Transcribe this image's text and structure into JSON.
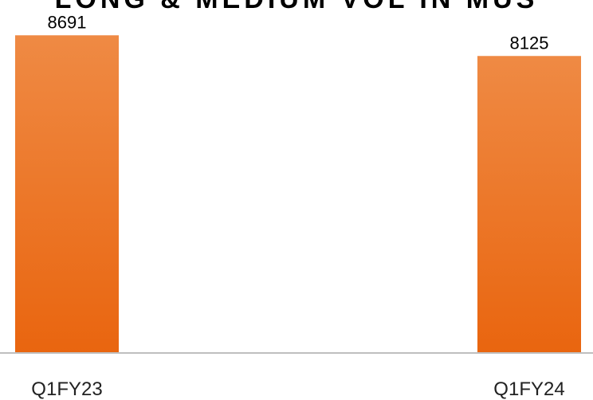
{
  "chart_data": {
    "type": "bar",
    "title": "LONG & MEDIUM VOL IN MUS",
    "categories": [
      "Q1FY23",
      "Q1FY24"
    ],
    "values": [
      8691,
      8125
    ],
    "data_labels": [
      "8691",
      "8125"
    ],
    "ylim": [
      0,
      8850
    ],
    "grid": false,
    "legend": "none",
    "colors": {
      "bar_top": "#ef8a44",
      "bar_bottom": "#e9650f",
      "axis": "#bfbfbf"
    }
  }
}
